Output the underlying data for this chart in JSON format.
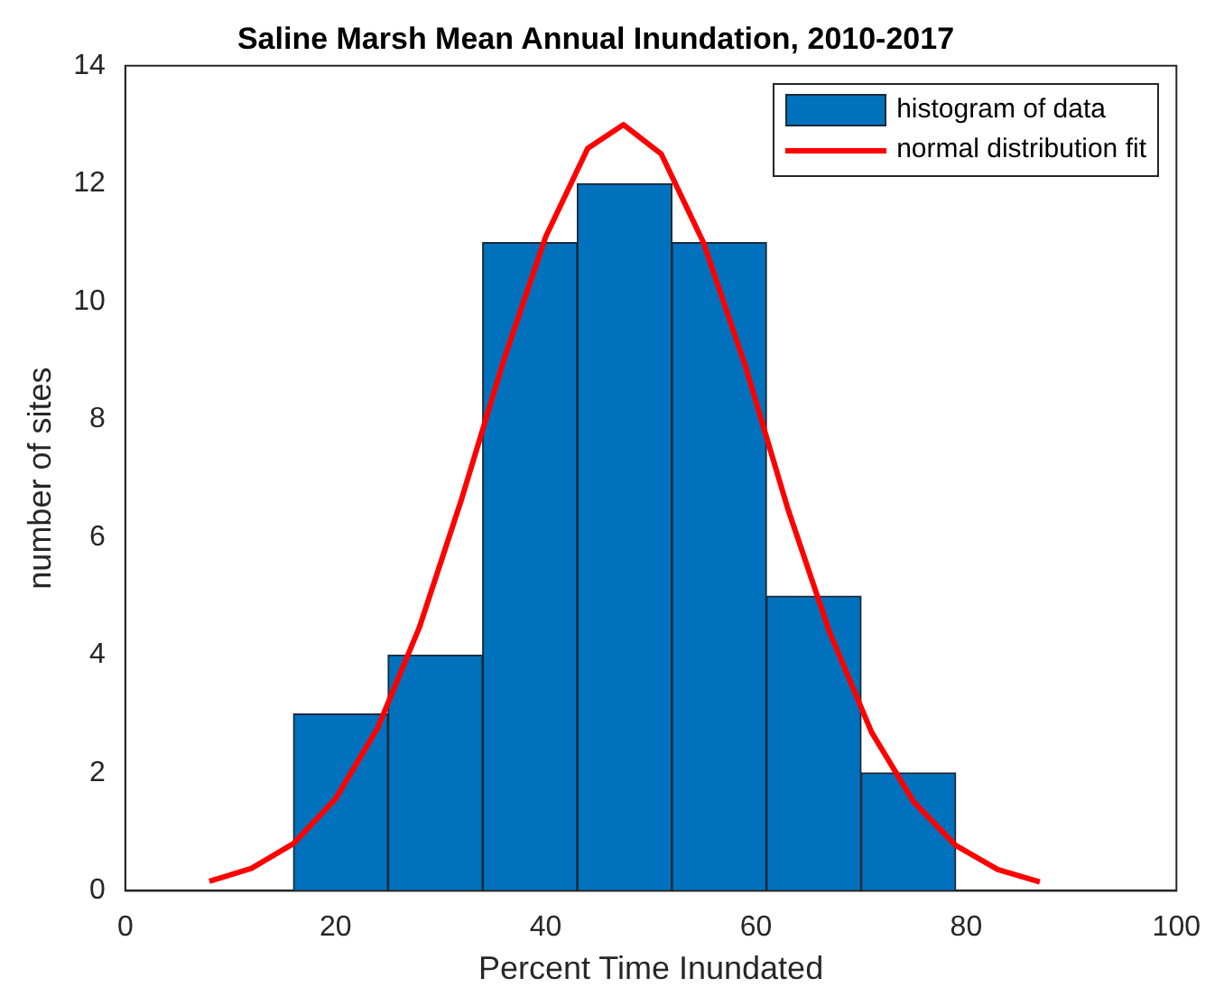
{
  "chart_data": {
    "type": "histogram",
    "title": "Saline Marsh Mean Annual Inundation, 2010-2017",
    "xlabel": "Percent Time Inundated",
    "ylabel": "number of sites",
    "bins": [
      16,
      25,
      34,
      43,
      52,
      61,
      70,
      79
    ],
    "series": [
      {
        "name": "histogram of data",
        "color": "#0072bd",
        "values": [
          3,
          4,
          11,
          12,
          11,
          5,
          2
        ]
      },
      {
        "name": "normal distribution fit",
        "type": "line",
        "color": "#ff0000",
        "x": [
          8,
          12,
          16,
          20,
          24,
          28,
          32,
          36,
          40,
          44,
          47.4,
          51,
          55,
          59,
          63,
          67,
          71,
          75,
          79,
          83,
          87
        ],
        "values": [
          0.16,
          0.38,
          0.8,
          1.56,
          2.76,
          4.48,
          6.65,
          9.0,
          11.1,
          12.6,
          13,
          12.5,
          11.0,
          8.9,
          6.5,
          4.39,
          2.69,
          1.51,
          0.77,
          0.36,
          0.15
        ]
      }
    ],
    "xlim": [
      0,
      100
    ],
    "xticks": [
      0,
      20,
      40,
      60,
      80,
      100
    ],
    "ylim": [
      0,
      14
    ],
    "yticks": [
      0,
      2,
      4,
      6,
      8,
      10,
      12,
      14
    ],
    "grid": false,
    "legend": "top right",
    "marker": "none",
    "line_style": "solid"
  }
}
